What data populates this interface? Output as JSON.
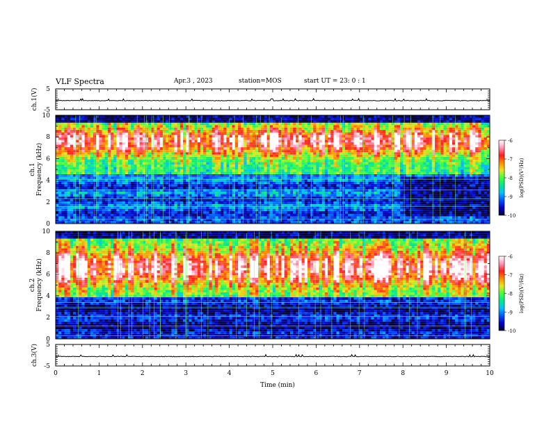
{
  "header": {
    "title": "VLF Spectra",
    "date": "Apr.3 , 2023",
    "station": "station=MOS",
    "start": "start UT = 23: 0 : 1"
  },
  "colors": {
    "colormap": [
      "#000030",
      "#0000c8",
      "#0055ff",
      "#00c0ff",
      "#00e68c",
      "#40ff40",
      "#e6e61e",
      "#ff8c00",
      "#ff1e1e",
      "#ff96b4",
      "#ffffff"
    ],
    "line": "#000000"
  },
  "chart_data": {
    "type": "heatmap",
    "xlabel": "Time (min)",
    "xlim": [
      0,
      10
    ],
    "x_ticks": [
      "0",
      "1",
      "2",
      "3",
      "4",
      "5",
      "6",
      "7",
      "8",
      "9",
      "10"
    ],
    "panels": [
      {
        "id": "ch1-voltage",
        "type": "line",
        "ylabel": "ch.1(V)",
        "ylim": [
          -5,
          5
        ],
        "y_ticks": [
          "5",
          "-5"
        ],
        "level": -0.6
      },
      {
        "id": "ch1-spectrogram",
        "type": "heatmap",
        "ylabel_line1": "ch.1",
        "ylabel_line2": "Frequency (kHz)",
        "ylim": [
          0,
          10
        ],
        "y_ticks": [
          "0",
          "2",
          "4",
          "6",
          "8",
          "10"
        ],
        "colorbar": {
          "range": [
            -10,
            -6
          ],
          "ticks": [
            "-6",
            "-7",
            "-8",
            "-9",
            "-10"
          ],
          "label": "log(PSD)(V²/Hz)"
        },
        "background_psd_below_4kHz_after_8min": -9.9
      },
      {
        "id": "ch2-spectrogram",
        "type": "heatmap",
        "ylabel_line1": "ch.2",
        "ylabel_line2": "Frequency (kHz)",
        "ylim": [
          0,
          10
        ],
        "y_ticks": [
          "0",
          "2",
          "4",
          "6",
          "8",
          "10"
        ],
        "colorbar": {
          "range": [
            -10,
            -6
          ],
          "ticks": [
            "-6",
            "-7",
            "-8",
            "-9",
            "-10"
          ],
          "label": "log(PSD)(V²/Hz)"
        }
      },
      {
        "id": "ch3-voltage",
        "type": "line",
        "ylabel": "ch.3(V)",
        "ylim": [
          -5,
          5
        ],
        "y_ticks": [
          "5",
          "-5"
        ],
        "level": -0.6
      }
    ]
  }
}
